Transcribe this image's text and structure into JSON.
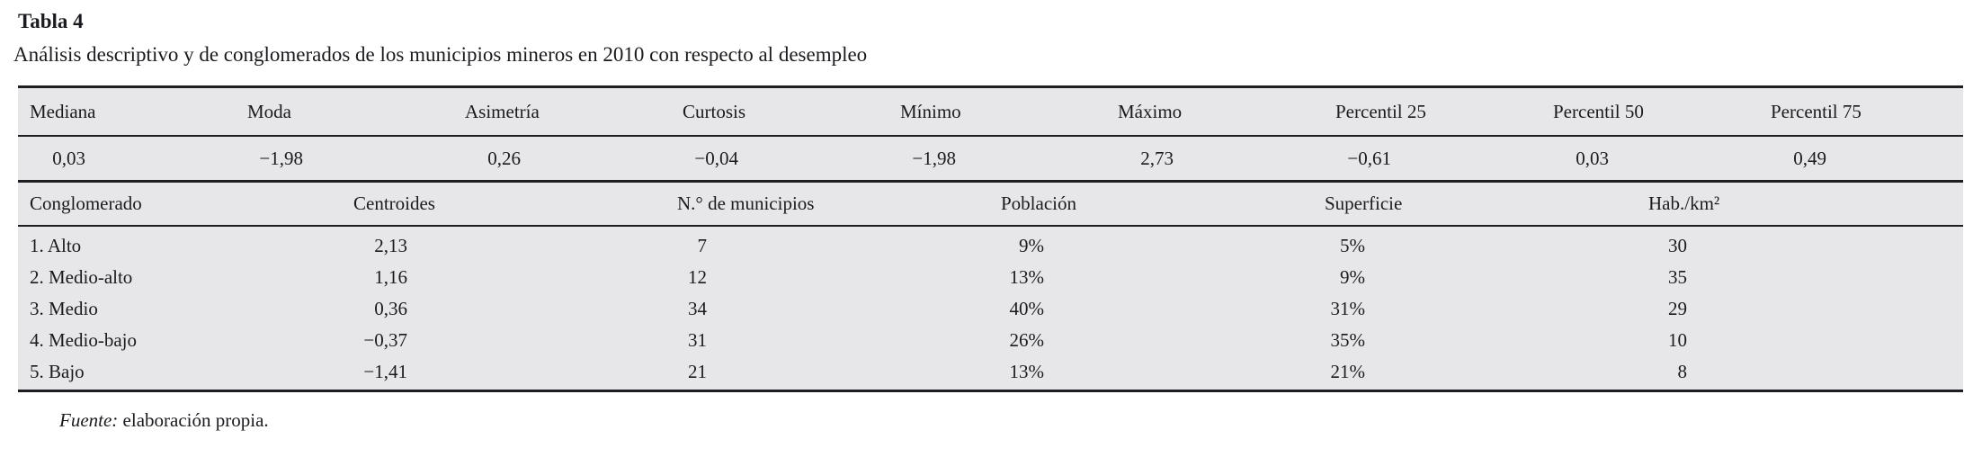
{
  "title": "Tabla 4",
  "subtitle": "Análisis descriptivo y de conglomerados de los municipios mineros en 2010 con respecto al desempleo",
  "colors": {
    "row_background": "#e7e7ea",
    "rule": "#201d22",
    "text": "#1c1a1e"
  },
  "stats_table": {
    "headers": [
      "Mediana",
      "Moda",
      "Asimetría",
      "Curtosis",
      "Mínimo",
      "Máximo",
      "Percentil 25",
      "Percentil 50",
      "Percentil 75"
    ],
    "values": [
      "0,03",
      "−1,98",
      "0,26",
      "−0,04",
      "−1,98",
      "2,73",
      "−0,61",
      "0,03",
      "0,49"
    ]
  },
  "cluster_table": {
    "headers": [
      "Conglomerado",
      "Centroides",
      "N.° de municipios",
      "Población",
      "Superficie",
      "Hab./km²"
    ],
    "rows": [
      {
        "label": "1. Alto",
        "centroides": "2,13",
        "municipios": "7",
        "poblacion": "9%",
        "superficie": "5%",
        "hab_km2": "30"
      },
      {
        "label": "2. Medio-alto",
        "centroides": "1,16",
        "municipios": "12",
        "poblacion": "13%",
        "superficie": "9%",
        "hab_km2": "35"
      },
      {
        "label": "3. Medio",
        "centroides": "0,36",
        "municipios": "34",
        "poblacion": "40%",
        "superficie": "31%",
        "hab_km2": "29"
      },
      {
        "label": "4. Medio-bajo",
        "centroides": "−0,37",
        "municipios": "31",
        "poblacion": "26%",
        "superficie": "35%",
        "hab_km2": "10"
      },
      {
        "label": "5. Bajo",
        "centroides": "−1,41",
        "municipios": "21",
        "poblacion": "13%",
        "superficie": "21%",
        "hab_km2": "8"
      }
    ]
  },
  "footer": {
    "source_label": "Fuente:",
    "source_text": " elaboración propia."
  }
}
